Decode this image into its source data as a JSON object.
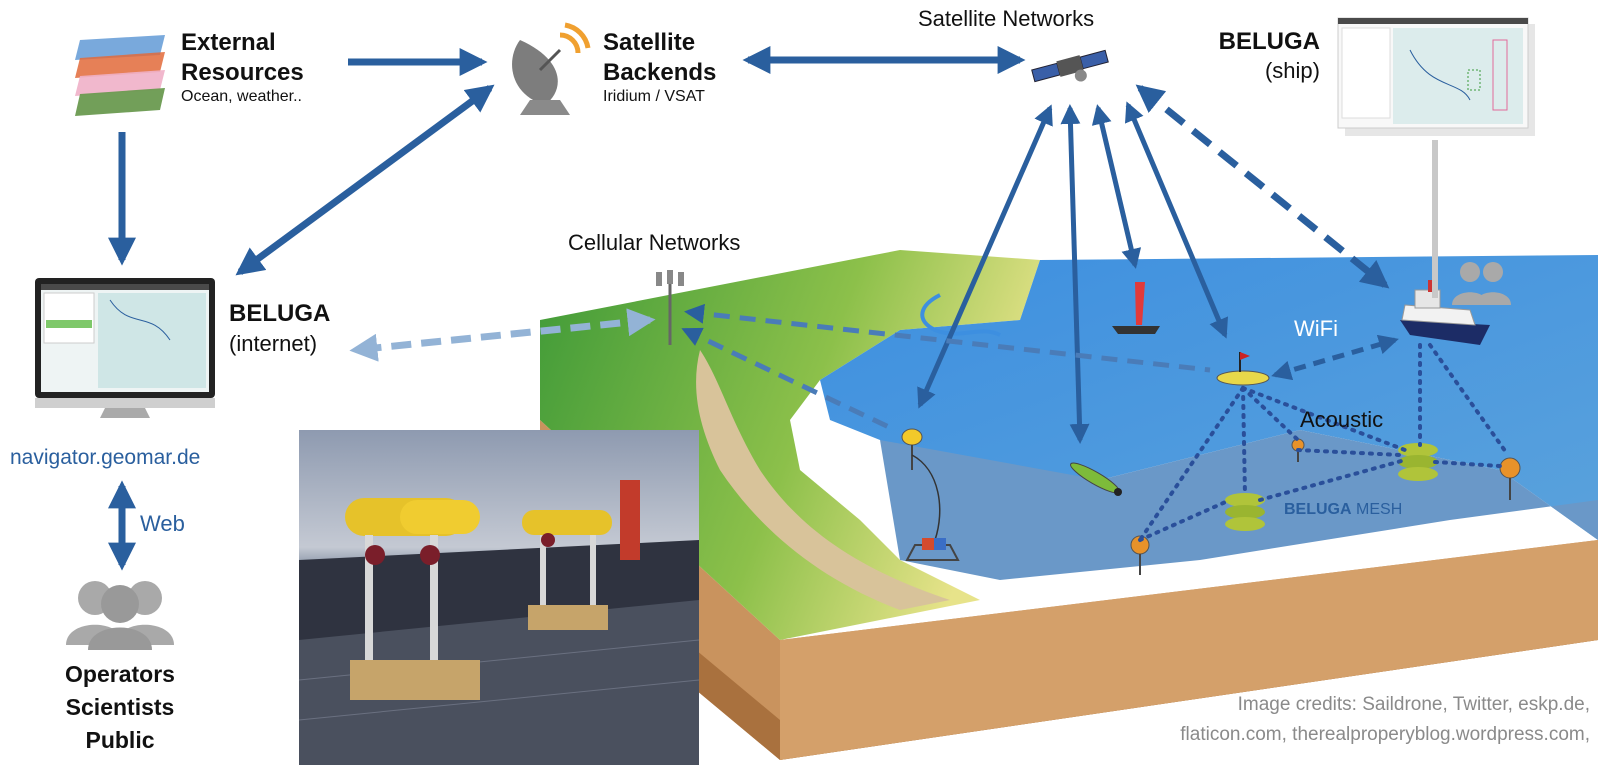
{
  "external_resources": {
    "title_line1": "External",
    "title_line2": "Resources",
    "subtitle": "Ocean, weather.."
  },
  "satellite_backends": {
    "title_line1": "Satellite",
    "title_line2": "Backends",
    "subtitle": "Iridium / VSAT"
  },
  "satellite_networks": {
    "label": "Satellite Networks"
  },
  "beluga_ship": {
    "title": "BELUGA",
    "subtitle": "(ship)"
  },
  "beluga_internet": {
    "title": "BELUGA",
    "subtitle": "(internet)"
  },
  "cellular_networks": {
    "label": "Cellular Networks"
  },
  "wifi": {
    "label": "WiFi"
  },
  "acoustic": {
    "label": "Acoustic"
  },
  "mesh": {
    "beluga": "BELUGA",
    "mesh": "MESH"
  },
  "navigator": {
    "url": "navigator.geomar.de",
    "web": "Web"
  },
  "users": {
    "line1": "Operators",
    "line2": "Scientists",
    "line3": "Public"
  },
  "credits": {
    "line1": "Image credits: Saildrone, Twitter, eskp.de,",
    "line2": "flaticon.com, therealproperyblog.wordpress.com,"
  },
  "colors": {
    "arrow_blue": "#2a5f9e",
    "arrow_light": "#93b3d6",
    "dotted_mesh": "#2a4f9a",
    "water": "#4a95d8",
    "seafloor": "#6a98c8",
    "soil": "#c99560",
    "grass": "#5fb03c",
    "sand": "#d8c39a"
  }
}
